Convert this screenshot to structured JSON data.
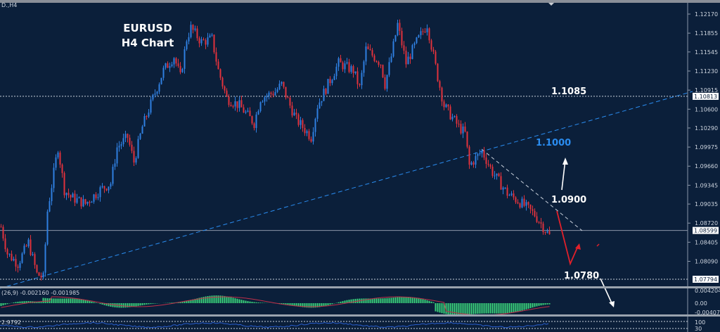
{
  "symbol_tag": "D.,H4",
  "chart_data": {
    "type": "candlestick",
    "title": [
      "EURUSD",
      "H4 Chart"
    ],
    "ylim": [
      1.0765,
      1.124
    ],
    "y_ticks": [
      "1.12170",
      "1.11855",
      "1.11545",
      "1.11230",
      "1.10915",
      "1.10600",
      "1.10290",
      "1.09975",
      "1.09660",
      "1.09345",
      "1.09035",
      "1.08720",
      "1.08405",
      "1.08090"
    ],
    "price_boxes": [
      "1.10813",
      "1.08599",
      "1.07794"
    ],
    "price_path": [
      [
        0,
        1.0866
      ],
      [
        3,
        1.0822
      ],
      [
        8,
        1.0805
      ],
      [
        13,
        1.084
      ],
      [
        17,
        1.0788
      ],
      [
        20,
        1.0782
      ],
      [
        22,
        1.0892
      ],
      [
        27,
        1.0997
      ],
      [
        30,
        1.0927
      ],
      [
        33,
        1.0915
      ],
      [
        40,
        1.0904
      ],
      [
        47,
        1.0927
      ],
      [
        52,
        1.0938
      ],
      [
        55,
        1.0997
      ],
      [
        60,
        1.1014
      ],
      [
        63,
        1.0973
      ],
      [
        67,
        1.1031
      ],
      [
        72,
        1.1078
      ],
      [
        77,
        1.1124
      ],
      [
        82,
        1.1147
      ],
      [
        85,
        1.1113
      ],
      [
        88,
        1.1176
      ],
      [
        90,
        1.1194
      ],
      [
        95,
        1.1171
      ],
      [
        100,
        1.1176
      ],
      [
        103,
        1.1124
      ],
      [
        107,
        1.1078
      ],
      [
        113,
        1.1066
      ],
      [
        120,
        1.1037
      ],
      [
        123,
        1.1078
      ],
      [
        130,
        1.1089
      ],
      [
        133,
        1.1101
      ],
      [
        137,
        1.1066
      ],
      [
        140,
        1.1043
      ],
      [
        147,
        1.1014
      ],
      [
        150,
        1.1066
      ],
      [
        155,
        1.1101
      ],
      [
        160,
        1.1136
      ],
      [
        167,
        1.1124
      ],
      [
        170,
        1.1095
      ],
      [
        173,
        1.1159
      ],
      [
        180,
        1.1136
      ],
      [
        182,
        1.1101
      ],
      [
        185,
        1.1147
      ],
      [
        188,
        1.12
      ],
      [
        192,
        1.1136
      ],
      [
        197,
        1.1171
      ],
      [
        202,
        1.12
      ],
      [
        207,
        1.1113
      ],
      [
        210,
        1.1066
      ],
      [
        217,
        1.1031
      ],
      [
        220,
        1.102
      ],
      [
        222,
        1.0967
      ],
      [
        228,
        1.0991
      ],
      [
        233,
        1.0956
      ],
      [
        240,
        1.0921
      ],
      [
        247,
        1.0904
      ],
      [
        253,
        1.0886
      ],
      [
        260,
        1.0851
      ]
    ],
    "levels": [
      {
        "price": 1.10813,
        "style": "dotted",
        "color": "#c8d0dc"
      },
      {
        "price": 1.08599,
        "style": "solid",
        "color": "#8a96a8"
      },
      {
        "price": 1.07794,
        "style": "dotted",
        "color": "#c8d0dc"
      }
    ],
    "annotations": [
      {
        "text": "1.1085",
        "color": "#ffffff"
      },
      {
        "text": "1.1000",
        "color": "#2a8cf0"
      },
      {
        "text": "1.0900",
        "color": "#ffffff"
      },
      {
        "text": "1.0780",
        "color": "#ffffff"
      }
    ],
    "bull_color": "#2f7fe0",
    "bear_color": "#e0323c",
    "macd": {
      "label": "(26,9) -0.002160 -0.001985",
      "ticks": [
        "0.004204",
        "0.00",
        "-0.004077"
      ],
      "hist_color": "#3ad17a",
      "signal_color": "#c0304a"
    },
    "lower": {
      "label": "2.9792",
      "ticks": [
        "100",
        "30"
      ],
      "line_color": "#2a5fd0"
    }
  }
}
